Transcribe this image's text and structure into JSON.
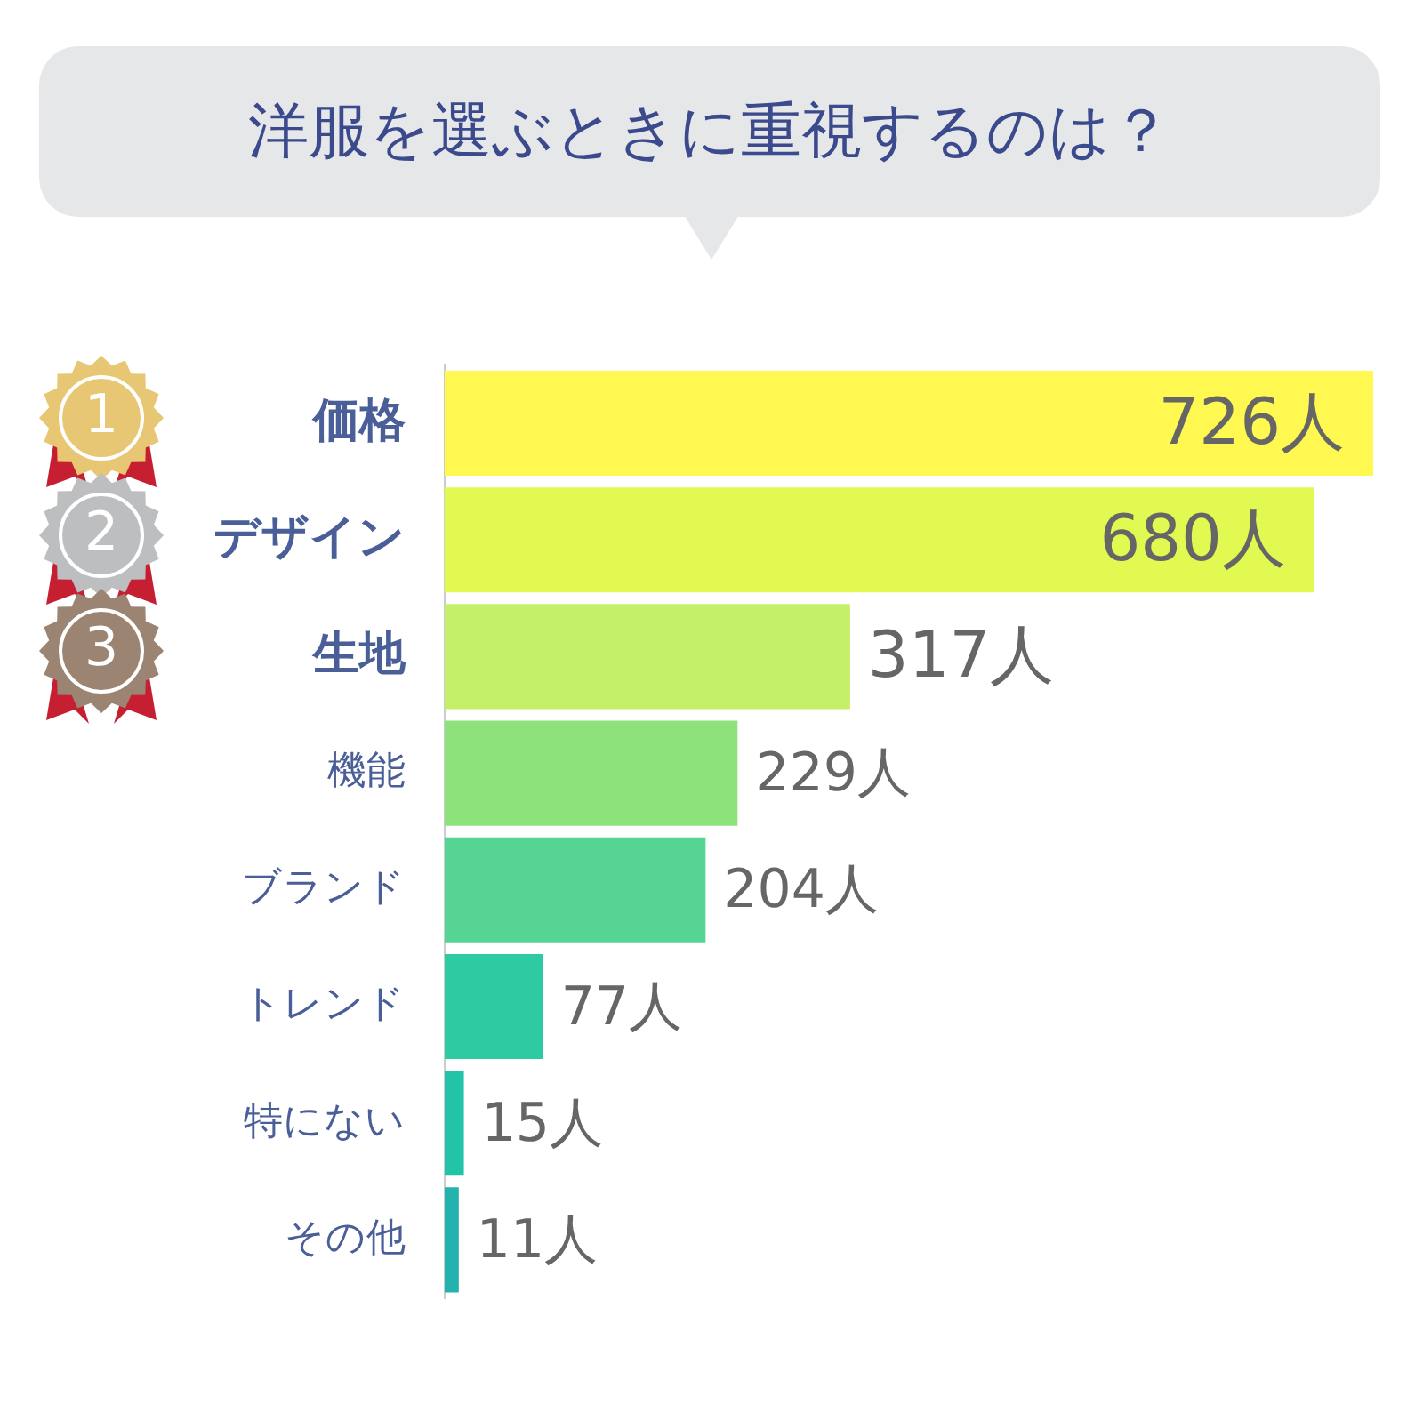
{
  "chart_data": {
    "type": "bar",
    "orientation": "horizontal",
    "title": "洋服を選ぶときに重視するのは？",
    "categories": [
      "価格",
      "デザイン",
      "生地",
      "機能",
      "ブランド",
      "トレンド",
      "特にない",
      "その他"
    ],
    "values": [
      726,
      680,
      317,
      229,
      204,
      77,
      15,
      11
    ],
    "colors": [
      "#fef851",
      "#e2f951",
      "#c4ef68",
      "#8de27b",
      "#55d494",
      "#2ecaa2",
      "#22c3a6",
      "#24b2ae"
    ],
    "value_labels": [
      "726人",
      "680人",
      "317人",
      "229人",
      "204人",
      "77人",
      "15人",
      "11人"
    ],
    "annotations": [
      "1",
      "2",
      "3"
    ],
    "grid": false,
    "legend": false
  }
}
